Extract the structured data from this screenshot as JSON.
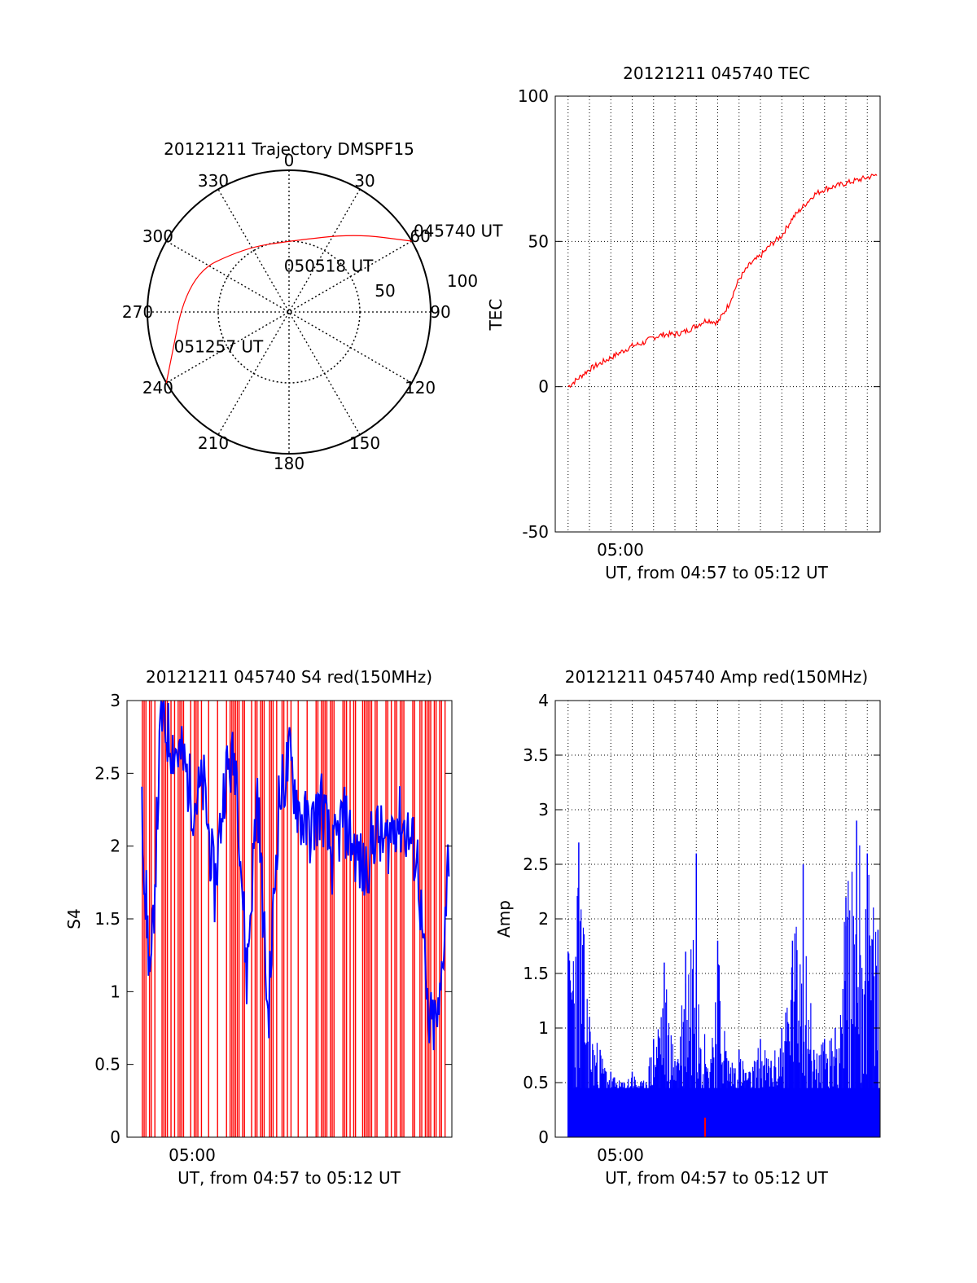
{
  "chart_data": [
    {
      "type": "polar",
      "title": "20121211 Trajectory DMSPF15",
      "azimuth_labels": [
        "0",
        "30",
        "60",
        "90",
        "120",
        "150",
        "180",
        "210",
        "240",
        "270",
        "300",
        "330"
      ],
      "radial_labels": [
        "50",
        "100"
      ],
      "radial_range": [
        0,
        100
      ],
      "grid": true,
      "series": [
        {
          "color": "#ff0000",
          "points": [
            {
              "az": 60,
              "r": 100
            },
            {
              "az": 40,
              "r": 72
            },
            {
              "az": 0,
              "r": 50
            },
            {
              "az": -35,
              "r": 55
            },
            {
              "az": -70,
              "r": 76
            },
            {
              "az": -120,
              "r": 100
            }
          ]
        }
      ],
      "annotations": [
        {
          "text": "045740 UT",
          "az": 62,
          "r": 106
        },
        {
          "text": "050518 UT",
          "az": 5,
          "r": 25
        },
        {
          "text": "051257 UT",
          "az": -113,
          "r": 82
        }
      ]
    },
    {
      "type": "line",
      "title": "20121211 045740 TEC",
      "ylabel": "TEC",
      "xlabel": "UT, from 04:57 to 05:12 UT",
      "x_tick_label": "05:00",
      "ylim": [
        -50,
        100
      ],
      "y_ticks": [
        "100",
        "50",
        "0",
        "-50"
      ],
      "xlim_minutes": [
        4.4,
        19.6
      ],
      "grid": true,
      "series": [
        {
          "color": "#ff0000",
          "x_minutes": [
            5.0,
            5.5,
            6.0,
            6.5,
            7.0,
            7.5,
            8.0,
            8.5,
            9.0,
            9.5,
            10.0,
            10.5,
            11.0,
            11.5,
            12.0,
            12.5,
            13.0,
            13.5,
            14.0,
            14.5,
            15.0,
            15.5,
            16.0,
            16.5,
            17.0,
            17.5,
            18.0,
            18.5,
            19.0,
            19.5
          ],
          "values": [
            0,
            3,
            6,
            8,
            10,
            12,
            14,
            15,
            17,
            18,
            18,
            19,
            21,
            23,
            22,
            28,
            37,
            42,
            45,
            49,
            52,
            58,
            62,
            66,
            68,
            69,
            70,
            71,
            72,
            73
          ]
        }
      ]
    },
    {
      "type": "line",
      "title": "20121211 045740 S4 red(150MHz)",
      "ylabel": "S4",
      "xlabel": "UT, from 04:57 to 05:12 UT",
      "x_tick_label": "05:00",
      "ylim": [
        0,
        3
      ],
      "y_ticks": [
        "3",
        "2.5",
        "2",
        "1.5",
        "1",
        "0.5",
        "0"
      ],
      "xlim_minutes": [
        4.4,
        19.6
      ],
      "series": [
        {
          "color": "#ff0000",
          "note_values": "dense vertical spikes between 0 and 3 spanning 04:57:40 to 05:12:57"
        },
        {
          "color": "#0000ff",
          "x_minutes": [
            5.1,
            5.5,
            6.0,
            6.5,
            7.0,
            7.5,
            8.0,
            8.5,
            9.0,
            9.5,
            10.0,
            10.5,
            11.0,
            11.5,
            12.0,
            12.5,
            13.0,
            13.5,
            14.0,
            14.5,
            15.0,
            15.5,
            16.0,
            16.5,
            17.0,
            17.5,
            18.0,
            18.5,
            19.0,
            19.5
          ],
          "values": [
            2.2,
            1.0,
            2.9,
            2.7,
            2.6,
            2.3,
            2.4,
            1.7,
            2.5,
            2.6,
            1.1,
            2.4,
            0.8,
            2.3,
            2.6,
            2.2,
            2.1,
            2.3,
            1.9,
            2.2,
            2.0,
            1.8,
            2.1,
            2.0,
            2.2,
            2.1,
            1.9,
            0.75,
            0.8,
            2.1
          ]
        }
      ]
    },
    {
      "type": "line",
      "title": "20121211 045740 Amp red(150MHz)",
      "ylabel": "Amp",
      "xlabel": "UT, from 04:57 to 05:12 UT",
      "x_tick_label": "05:00",
      "ylim": [
        0,
        4
      ],
      "y_ticks": [
        "4",
        "3.5",
        "3",
        "2.5",
        "2",
        "1.5",
        "1",
        "0.5",
        "0"
      ],
      "xlim_minutes": [
        4.4,
        19.6
      ],
      "grid": true,
      "series": [
        {
          "color": "#0000ff",
          "x_minutes": [
            5.0,
            5.5,
            6.0,
            6.5,
            7.0,
            7.5,
            8.0,
            8.5,
            9.0,
            9.5,
            10.0,
            10.5,
            11.0,
            11.5,
            12.0,
            12.5,
            13.0,
            13.5,
            14.0,
            14.5,
            15.0,
            15.5,
            16.0,
            16.5,
            17.0,
            17.5,
            18.0,
            18.5,
            19.0,
            19.5
          ],
          "values": [
            1.7,
            2.7,
            1.1,
            0.8,
            0.6,
            0.5,
            0.6,
            0.5,
            0.9,
            1.6,
            0.7,
            1.7,
            2.6,
            0.6,
            1.8,
            0.7,
            0.8,
            0.6,
            0.9,
            0.7,
            1.0,
            1.8,
            2.5,
            0.8,
            0.9,
            1.0,
            2.2,
            2.9,
            2.6,
            1.9
          ]
        }
      ]
    }
  ]
}
